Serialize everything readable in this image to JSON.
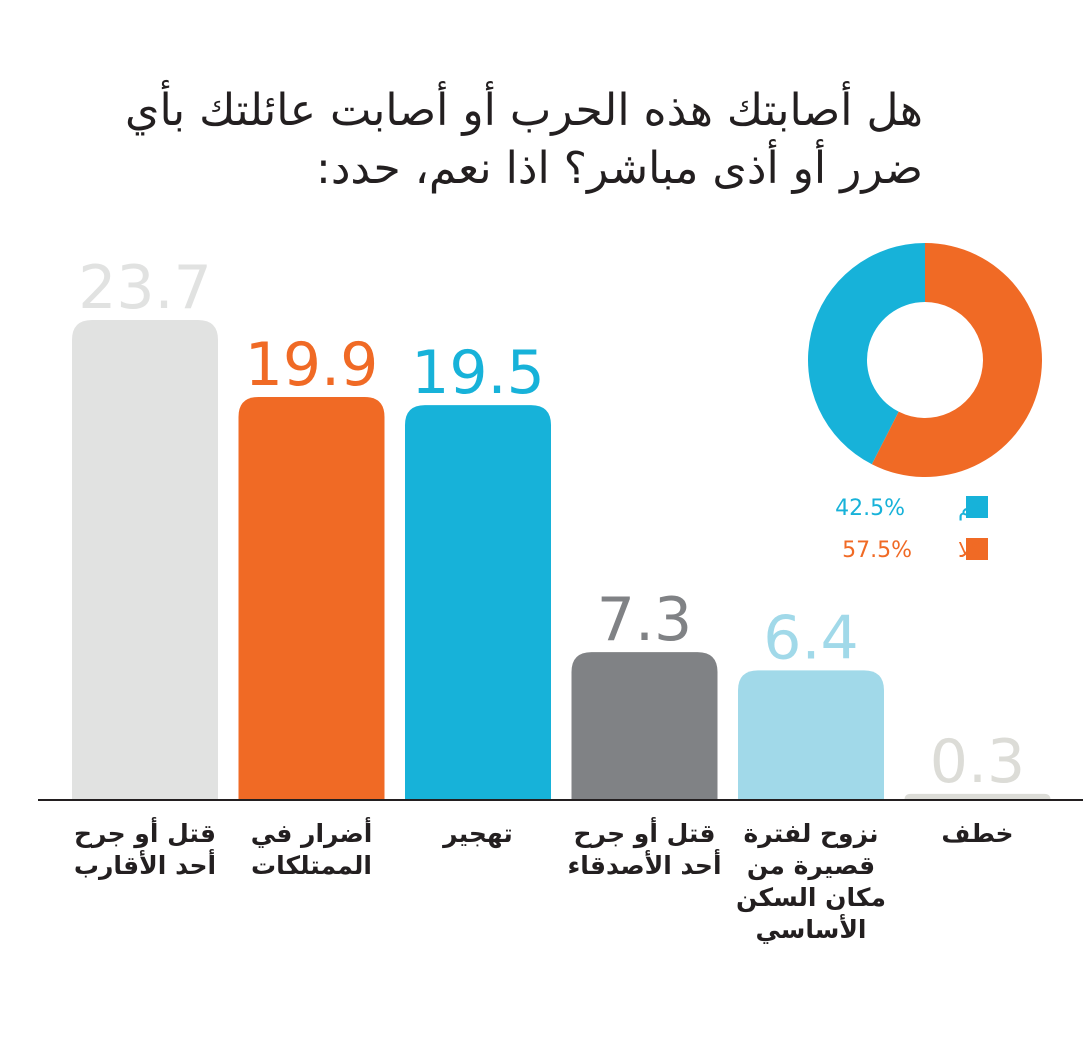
{
  "chart_data": [
    {
      "type": "bar",
      "title": "هل أصابتك هذه الحرب أو أصابت عائلتك بأي ضرر أو أذى مباشر؟ اذا نعم، حدد:",
      "categories": [
        "قتل أو جرح أحد الأقارب",
        "أضرار في الممتلكات",
        "تهجير",
        "قتل أو جرح أحد الأصدقاء",
        "نزوح لفترة قصيرة من مكان السكن الأساسي",
        "خطف"
      ],
      "values": [
        23.7,
        19.9,
        19.5,
        7.3,
        6.4,
        0.3
      ],
      "colors": [
        "#e1e2e1",
        "#f06a25",
        "#17b2d9",
        "#808285",
        "#a1d9e9",
        "#dcdcd7"
      ],
      "ylim": [
        0,
        23.7
      ]
    },
    {
      "type": "pie",
      "categories": [
        "نعم",
        "كلا"
      ],
      "values": [
        42.5,
        57.5
      ],
      "value_labels": [
        "42.5%",
        "57.5%"
      ],
      "colors": [
        "#17b2d9",
        "#f06a25"
      ]
    }
  ]
}
